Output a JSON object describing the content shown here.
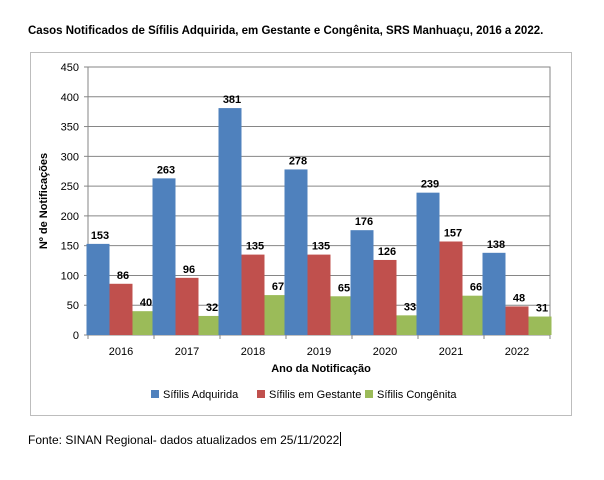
{
  "title": "Casos Notificados de Sífilis Adquirida, em Gestante e Congênita, SRS Manhuaçu, 2016 a 2022.",
  "source_note": "Fonte: SINAN Regional- dados atualizados em 25/11/2022",
  "chart_data": {
    "type": "bar",
    "xlabel": "Ano da Notificação",
    "ylabel": "Nº de Notificações",
    "ylim": [
      0,
      450
    ],
    "ytick_step": 50,
    "grid": true,
    "legend_position": "bottom",
    "categories": [
      "2016",
      "2017",
      "2018",
      "2019",
      "2020",
      "2021",
      "2022"
    ],
    "series": [
      {
        "name": "Sífilis Adquirida",
        "color": "#4f81bd",
        "values": [
          153,
          263,
          381,
          278,
          176,
          239,
          138
        ]
      },
      {
        "name": "Sífilis em Gestante",
        "color": "#c0504d",
        "values": [
          86,
          96,
          135,
          135,
          126,
          157,
          48
        ]
      },
      {
        "name": "Sífilis Congênita",
        "color": "#9bbb59",
        "values": [
          40,
          32,
          67,
          65,
          33,
          66,
          31
        ]
      }
    ]
  }
}
